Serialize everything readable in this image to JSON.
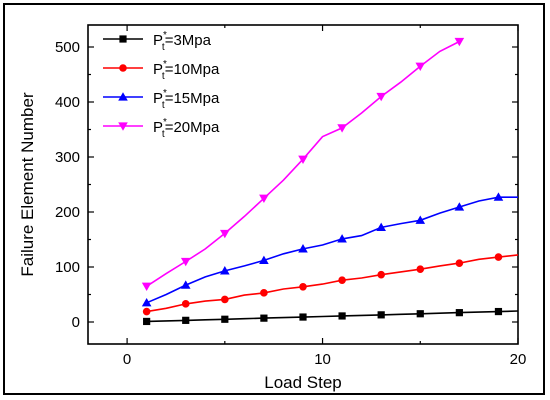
{
  "chart_data": {
    "type": "line",
    "xlabel": "Load Step",
    "ylabel": "Failure Element Number",
    "xlim": [
      -2,
      20
    ],
    "ylim": [
      -40,
      540
    ],
    "xticks": [
      0,
      10,
      20
    ],
    "yticks": [
      0,
      100,
      200,
      300,
      400,
      500
    ],
    "grid": false,
    "legend_position": "top-left",
    "series": [
      {
        "name": "P",
        "sup": "*",
        "sub": "t",
        "suffix": "=3Mpa",
        "color": "#000000",
        "marker": "square",
        "x": [
          1,
          2,
          3,
          4,
          5,
          6,
          7,
          8,
          9,
          10,
          11,
          12,
          13,
          14,
          15,
          16,
          17,
          18,
          19,
          20
        ],
        "y": [
          1,
          2,
          3,
          4,
          5,
          6,
          7,
          8,
          9,
          10,
          11,
          12,
          13,
          14,
          15,
          16,
          17,
          18,
          19,
          20
        ]
      },
      {
        "name": "P",
        "sup": "*",
        "sub": "t",
        "suffix": "=10Mpa",
        "color": "#ff0000",
        "marker": "circle",
        "x": [
          1,
          2,
          3,
          4,
          5,
          6,
          7,
          8,
          9,
          10,
          11,
          12,
          13,
          14,
          15,
          16,
          17,
          18,
          19,
          20
        ],
        "y": [
          19,
          25,
          33,
          38,
          41,
          49,
          53,
          60,
          64,
          69,
          76,
          80,
          86,
          91,
          96,
          102,
          107,
          114,
          118,
          122
        ]
      },
      {
        "name": "P",
        "sup": "*",
        "sub": "t",
        "suffix": "=15Mpa",
        "color": "#0000ff",
        "marker": "triangle-up",
        "x": [
          1,
          2,
          3,
          4,
          5,
          6,
          7,
          8,
          9,
          10,
          11,
          12,
          13,
          14,
          15,
          16,
          17,
          18,
          19,
          20
        ],
        "y": [
          35,
          50,
          67,
          82,
          93,
          102,
          112,
          124,
          133,
          140,
          151,
          157,
          172,
          179,
          185,
          198,
          209,
          220,
          227,
          227
        ]
      },
      {
        "name": "P",
        "sup": "*",
        "sub": "t",
        "suffix": "=20Mpa",
        "color": "#ff00ff",
        "marker": "triangle-down",
        "x": [
          1,
          2,
          3,
          4,
          5,
          6,
          7,
          8,
          9,
          10,
          11,
          12,
          13,
          14,
          15,
          16,
          17
        ],
        "y": [
          65,
          88,
          110,
          133,
          161,
          192,
          225,
          258,
          296,
          337,
          353,
          380,
          410,
          436,
          465,
          492,
          510
        ]
      }
    ]
  }
}
